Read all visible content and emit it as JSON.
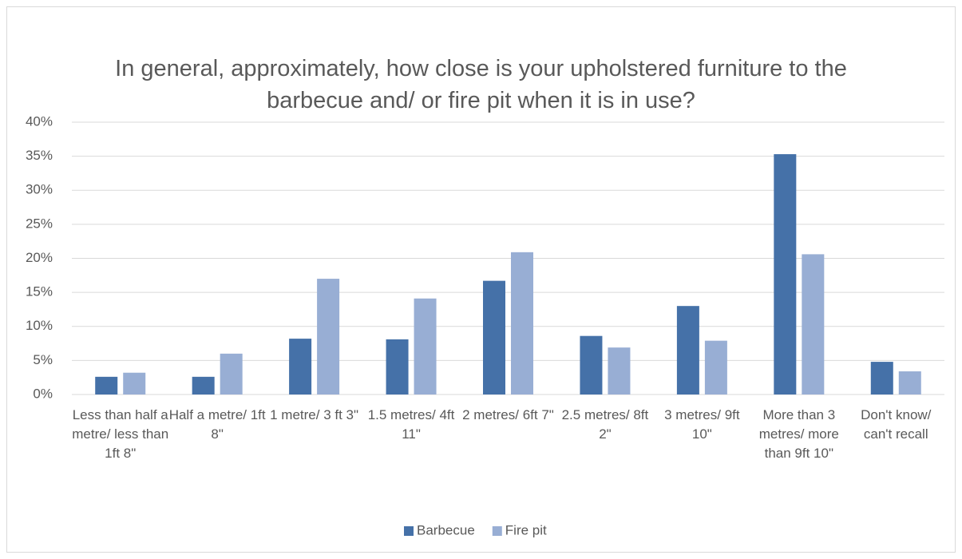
{
  "chart_data": {
    "type": "bar",
    "title": "In general, approximately, how close is your upholstered furniture to the barbecue and/ or fire pit when it is in use?",
    "categories": [
      "Less than half a metre/ less than 1ft 8\"",
      "Half a metre/ 1ft 8\"",
      "1 metre/ 3 ft 3\"",
      "1.5 metres/ 4ft 11\"",
      "2 metres/ 6ft 7\"",
      "2.5 metres/ 8ft 2\"",
      "3 metres/ 9ft 10\"",
      "More than 3 metres/ more than 9ft 10\"",
      "Don't know/ can't recall"
    ],
    "series": [
      {
        "name": "Barbecue",
        "color": "#4571a8",
        "values": [
          2.6,
          2.6,
          8.2,
          8.1,
          16.7,
          8.6,
          13.0,
          35.3,
          4.8
        ]
      },
      {
        "name": "Fire pit",
        "color": "#98aed4",
        "values": [
          3.2,
          6.0,
          17.0,
          14.1,
          20.9,
          6.9,
          7.9,
          20.6,
          3.4
        ]
      }
    ],
    "ylim": [
      0,
      40
    ],
    "yticks": [
      {
        "value": 0,
        "label": "0%"
      },
      {
        "value": 5,
        "label": "5%"
      },
      {
        "value": 10,
        "label": "10%"
      },
      {
        "value": 15,
        "label": "15%"
      },
      {
        "value": 20,
        "label": "20%"
      },
      {
        "value": 25,
        "label": "25%"
      },
      {
        "value": 30,
        "label": "30%"
      },
      {
        "value": 35,
        "label": "35%"
      },
      {
        "value": 40,
        "label": "40%"
      }
    ],
    "grid": true,
    "legend": "bottom"
  }
}
